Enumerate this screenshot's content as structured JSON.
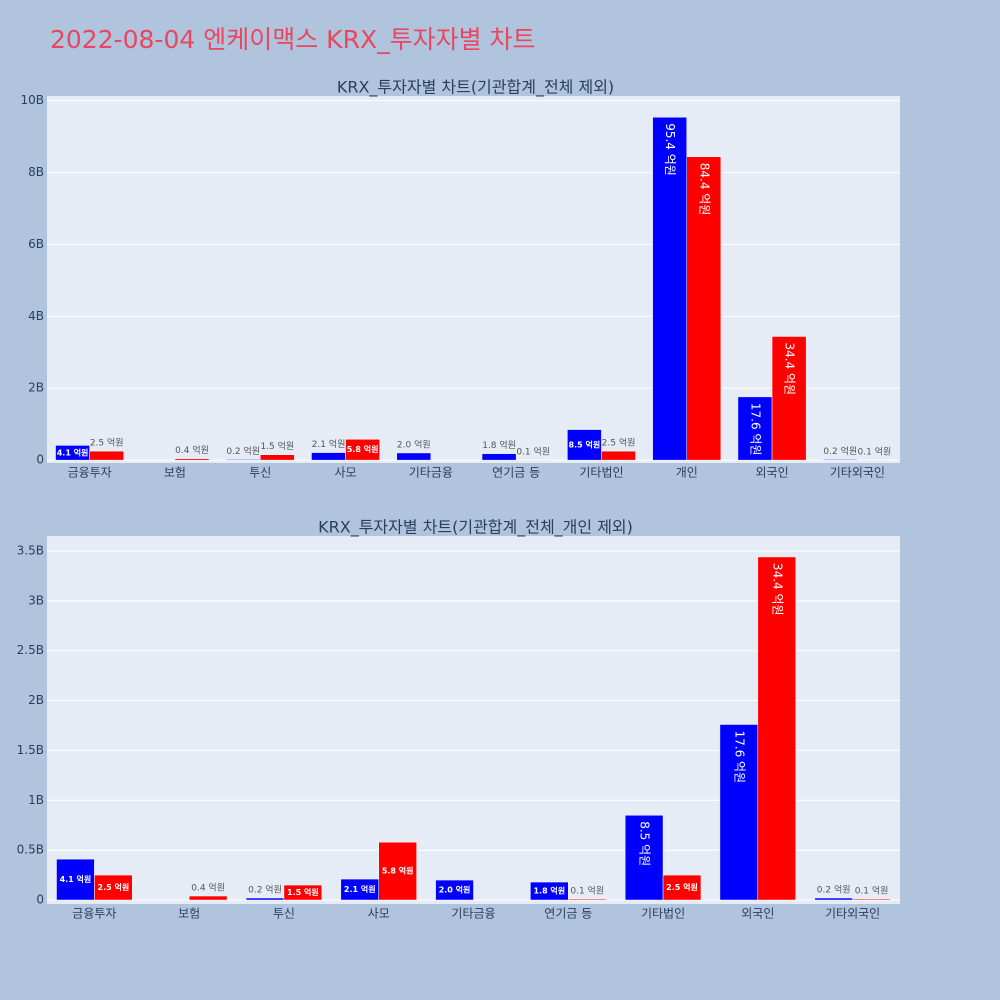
{
  "title": "2022-08-04 엔케이맥스 KRX_투자자별 차트",
  "chart_data": [
    {
      "type": "bar",
      "title": "KRX_투자자별 차트(기관합계_전체 제외)",
      "categories": [
        "금융투자",
        "보험",
        "투신",
        "사모",
        "기타금융",
        "연기금 등",
        "기타법인",
        "개인",
        "외국인",
        "기타외국인"
      ],
      "series": [
        {
          "color": "#0000ff",
          "values": [
            410000000,
            null,
            20000000,
            210000000,
            200000000,
            180000000,
            850000000,
            9540000000,
            1760000000,
            20000000
          ],
          "value_labels": [
            "4.1 억원",
            null,
            "0.2 억원",
            "2.1 억원",
            "2.0 억원",
            "1.8 억원",
            "8.5 억원",
            "95.4 억원",
            "17.6 억원",
            "0.2 억원"
          ]
        },
        {
          "color": "#ff0000",
          "values": [
            250000000,
            40000000,
            150000000,
            580000000,
            null,
            10000000,
            250000000,
            8440000000,
            3440000000,
            10000000
          ],
          "value_labels": [
            "2.5 억원",
            "0.4 억원",
            "1.5 억원",
            "5.8 억원",
            null,
            "0.1 억원",
            "2.5 억원",
            "84.4 억원",
            "34.4 억원",
            "0.1 억원"
          ]
        }
      ],
      "ylim": [
        -80000000,
        10130000000
      ],
      "yticks": [
        0,
        {
          "value": 2000000000,
          "label": "2B"
        },
        {
          "value": 4000000000,
          "label": "4B"
        },
        {
          "value": 6000000000,
          "label": "6B"
        },
        {
          "value": 8000000000,
          "label": "8B"
        },
        {
          "value": 10000000000,
          "label": "10B"
        }
      ],
      "grid": true
    },
    {
      "type": "bar",
      "title": "KRX_투자자별 차트(기관합계_전체_개인 제외)",
      "categories": [
        "금융투자",
        "보험",
        "투신",
        "사모",
        "기타금융",
        "연기금 등",
        "기타법인",
        "외국인",
        "기타외국인"
      ],
      "series": [
        {
          "color": "#0000ff",
          "values": [
            410000000,
            null,
            20000000,
            210000000,
            200000000,
            180000000,
            850000000,
            1760000000,
            20000000
          ],
          "value_labels": [
            "4.1 억원",
            null,
            "0.2 억원",
            "2.1 억원",
            "2.0 억원",
            "1.8 억원",
            "8.5 억원",
            "17.6 억원",
            "0.2 억원"
          ]
        },
        {
          "color": "#ff0000",
          "values": [
            250000000,
            40000000,
            150000000,
            580000000,
            null,
            10000000,
            250000000,
            3440000000,
            10000000
          ],
          "value_labels": [
            "2.5 억원",
            "0.4 억원",
            "1.5 억원",
            "5.8 억원",
            null,
            "0.1 억원",
            "2.5 억원",
            "34.4 억원",
            "0.1 억원"
          ]
        }
      ],
      "ylim": [
        -40000000,
        3650000000
      ],
      "yticks": [
        0,
        {
          "value": 500000000,
          "label": "0.5B"
        },
        {
          "value": 1000000000,
          "label": "1B"
        },
        {
          "value": 1500000000,
          "label": "1.5B"
        },
        {
          "value": 2000000000,
          "label": "2B"
        },
        {
          "value": 2500000000,
          "label": "2.5B"
        },
        {
          "value": 3000000000,
          "label": "3B"
        },
        {
          "value": 3500000000,
          "label": "3.5B"
        }
      ],
      "grid": true
    }
  ]
}
